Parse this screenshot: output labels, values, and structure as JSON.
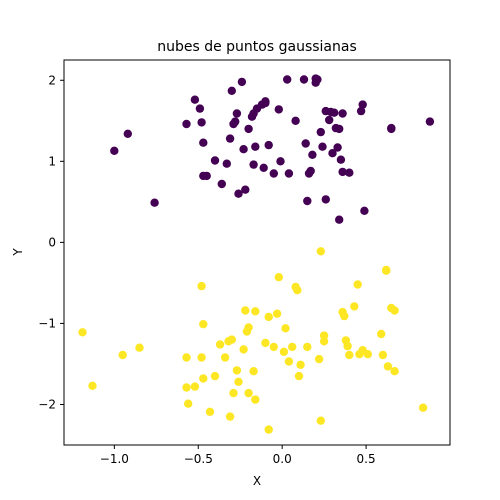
{
  "chart_data": {
    "type": "scatter",
    "title": "nubes de puntos gaussianas",
    "xlabel": "X",
    "ylabel": "Y",
    "xlim": [
      -1.3,
      1.0
    ],
    "ylim": [
      -2.5,
      2.25
    ],
    "xticks": [
      -1.0,
      -0.5,
      0.0,
      0.5
    ],
    "xtick_labels": [
      "−1.0",
      "−0.5",
      "0.0",
      "0.5"
    ],
    "yticks": [
      -2,
      -1,
      0,
      1,
      2
    ],
    "ytick_labels": [
      "−2",
      "−1",
      "0",
      "1",
      "2"
    ],
    "grid": false,
    "series": [
      {
        "color": "#440154",
        "points": [
          [
            -1.0,
            1.13
          ],
          [
            -0.92,
            1.34
          ],
          [
            -0.76,
            0.49
          ],
          [
            -0.57,
            1.46
          ],
          [
            -0.52,
            1.76
          ],
          [
            -0.49,
            1.65
          ],
          [
            -0.48,
            1.48
          ],
          [
            -0.47,
            1.23
          ],
          [
            -0.47,
            0.82
          ],
          [
            -0.45,
            0.82
          ],
          [
            -0.4,
            1.01
          ],
          [
            -0.36,
            0.72
          ],
          [
            -0.33,
            0.97
          ],
          [
            -0.31,
            1.28
          ],
          [
            -0.3,
            1.87
          ],
          [
            -0.29,
            1.46
          ],
          [
            -0.28,
            1.49
          ],
          [
            -0.27,
            1.59
          ],
          [
            -0.26,
            0.6
          ],
          [
            -0.24,
            1.98
          ],
          [
            -0.23,
            1.15
          ],
          [
            -0.22,
            0.65
          ],
          [
            -0.2,
            1.4
          ],
          [
            -0.18,
            1.55
          ],
          [
            -0.17,
            1.59
          ],
          [
            -0.17,
            0.96
          ],
          [
            -0.16,
            1.18
          ],
          [
            -0.15,
            1.65
          ],
          [
            -0.12,
            1.7
          ],
          [
            -0.11,
            0.92
          ],
          [
            -0.1,
            1.74
          ],
          [
            -0.1,
            1.72
          ],
          [
            -0.08,
            1.2
          ],
          [
            -0.05,
            0.85
          ],
          [
            -0.02,
            1.64
          ],
          [
            -0.01,
            1.0
          ],
          [
            0.03,
            2.01
          ],
          [
            0.04,
            0.85
          ],
          [
            0.08,
            1.5
          ],
          [
            0.13,
            2.01
          ],
          [
            0.14,
            1.22
          ],
          [
            0.15,
            0.51
          ],
          [
            0.16,
            0.85
          ],
          [
            0.17,
            0.88
          ],
          [
            0.18,
            1.08
          ],
          [
            0.2,
            2.02
          ],
          [
            0.2,
            1.97
          ],
          [
            0.21,
            2.01
          ],
          [
            0.23,
            1.36
          ],
          [
            0.24,
            1.18
          ],
          [
            0.26,
            1.62
          ],
          [
            0.26,
            0.53
          ],
          [
            0.28,
            1.51
          ],
          [
            0.29,
            1.61
          ],
          [
            0.3,
            1.1
          ],
          [
            0.31,
            1.6
          ],
          [
            0.32,
            1.41
          ],
          [
            0.33,
            1.17
          ],
          [
            0.34,
            1.4
          ],
          [
            0.34,
            0.28
          ],
          [
            0.35,
            1.02
          ],
          [
            0.36,
            1.59
          ],
          [
            0.36,
            0.87
          ],
          [
            0.4,
            0.86
          ],
          [
            0.47,
            1.62
          ],
          [
            0.48,
            1.7
          ],
          [
            0.49,
            0.39
          ],
          [
            0.65,
            1.4
          ],
          [
            0.65,
            1.41
          ],
          [
            0.88,
            1.49
          ]
        ]
      },
      {
        "color": "#fde725",
        "points": [
          [
            -1.19,
            -1.11
          ],
          [
            -1.13,
            -1.77
          ],
          [
            -0.95,
            -1.39
          ],
          [
            -0.85,
            -1.3
          ],
          [
            -0.57,
            -1.42
          ],
          [
            -0.57,
            -1.79
          ],
          [
            -0.56,
            -1.99
          ],
          [
            -0.52,
            -1.78
          ],
          [
            -0.48,
            -0.54
          ],
          [
            -0.48,
            -1.42
          ],
          [
            -0.47,
            -1.01
          ],
          [
            -0.47,
            -1.68
          ],
          [
            -0.43,
            -2.09
          ],
          [
            -0.4,
            -1.65
          ],
          [
            -0.37,
            -1.26
          ],
          [
            -0.34,
            -1.42
          ],
          [
            -0.32,
            -1.22
          ],
          [
            -0.31,
            -2.15
          ],
          [
            -0.3,
            -1.2
          ],
          [
            -0.29,
            -1.86
          ],
          [
            -0.27,
            -1.58
          ],
          [
            -0.26,
            -1.72
          ],
          [
            -0.23,
            -1.32
          ],
          [
            -0.22,
            -0.84
          ],
          [
            -0.21,
            -1.1
          ],
          [
            -0.2,
            -1.86
          ],
          [
            -0.2,
            -1.05
          ],
          [
            -0.17,
            -1.59
          ],
          [
            -0.16,
            -1.94
          ],
          [
            -0.16,
            -0.85
          ],
          [
            -0.1,
            -1.24
          ],
          [
            -0.08,
            -2.31
          ],
          [
            -0.08,
            -0.92
          ],
          [
            -0.05,
            -1.29
          ],
          [
            -0.03,
            -0.88
          ],
          [
            -0.02,
            -0.43
          ],
          [
            0.01,
            -1.35
          ],
          [
            0.02,
            -1.06
          ],
          [
            0.04,
            -1.47
          ],
          [
            0.06,
            -1.29
          ],
          [
            0.08,
            -0.55
          ],
          [
            0.09,
            -0.59
          ],
          [
            0.1,
            -1.65
          ],
          [
            0.11,
            -1.51
          ],
          [
            0.15,
            -1.29
          ],
          [
            0.22,
            -1.44
          ],
          [
            0.23,
            -2.2
          ],
          [
            0.23,
            -0.11
          ],
          [
            0.25,
            -1.15
          ],
          [
            0.25,
            -1.22
          ],
          [
            0.36,
            -0.86
          ],
          [
            0.37,
            -0.91
          ],
          [
            0.38,
            -1.21
          ],
          [
            0.39,
            -1.28
          ],
          [
            0.4,
            -1.39
          ],
          [
            0.43,
            -0.79
          ],
          [
            0.45,
            -0.52
          ],
          [
            0.46,
            -1.38
          ],
          [
            0.48,
            -1.33
          ],
          [
            0.51,
            -1.38
          ],
          [
            0.59,
            -1.13
          ],
          [
            0.6,
            -1.39
          ],
          [
            0.62,
            -0.34
          ],
          [
            0.62,
            -0.35
          ],
          [
            0.63,
            -1.53
          ],
          [
            0.65,
            -0.81
          ],
          [
            0.67,
            -0.84
          ],
          [
            0.67,
            -1.59
          ],
          [
            0.84,
            -2.04
          ]
        ]
      }
    ]
  }
}
